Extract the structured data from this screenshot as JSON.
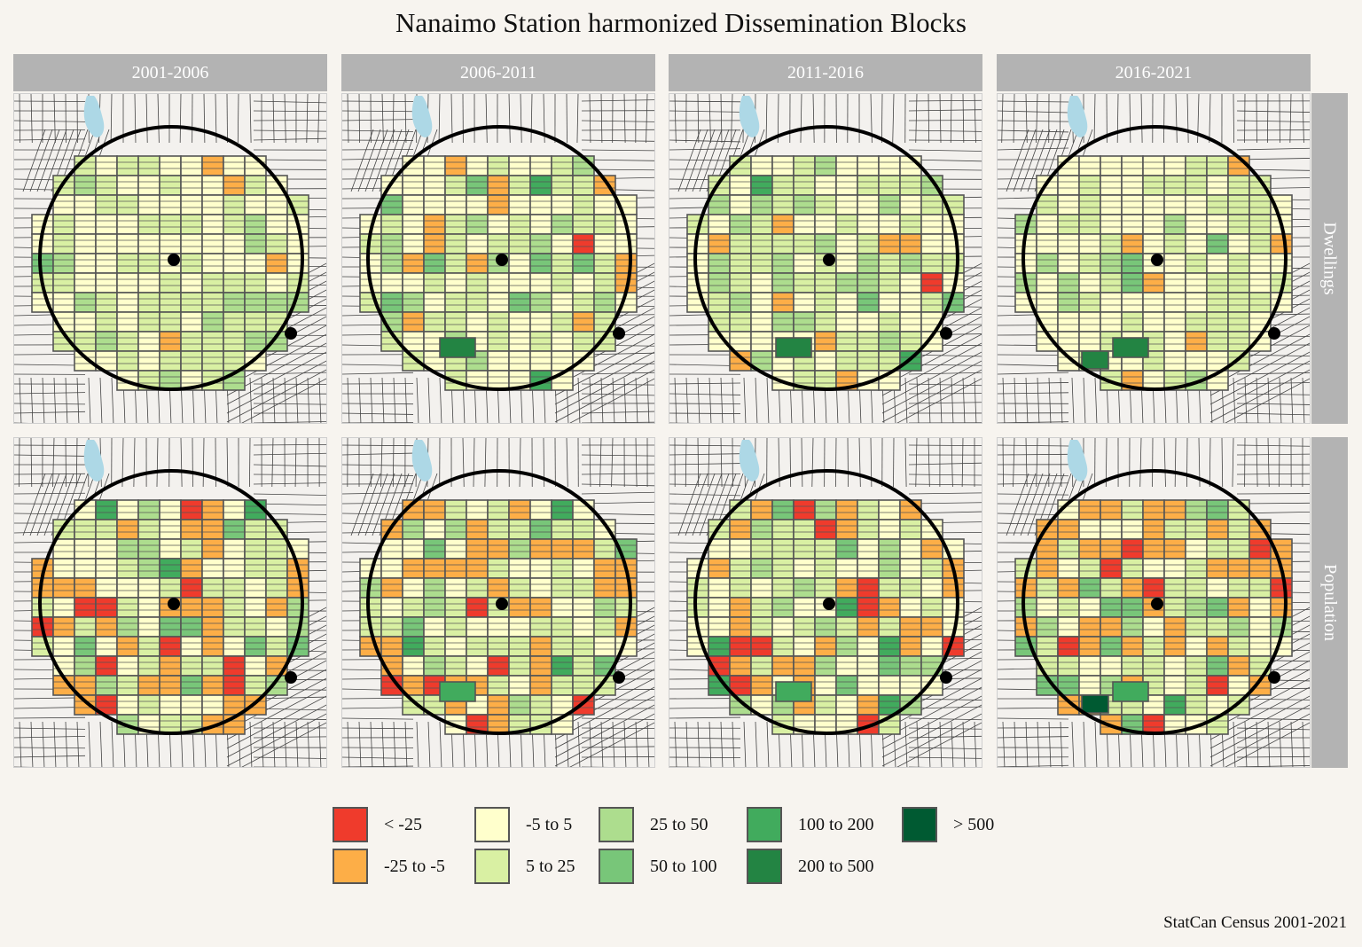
{
  "title": "Nanaimo Station harmonized Dissemination Blocks",
  "columns": [
    "2001-2006",
    "2006-2011",
    "2011-2016",
    "2016-2021"
  ],
  "rows": [
    "Dwellings",
    "Population"
  ],
  "legend": {
    "items": [
      {
        "label": "< -25",
        "color": "#ef3b2c"
      },
      {
        "label": "-25 to -5",
        "color": "#fdae47"
      },
      {
        "label": "-5 to 5",
        "color": "#ffffcc"
      },
      {
        "label": "5 to 25",
        "color": "#d9f0a3"
      },
      {
        "label": "25 to 50",
        "color": "#addd8e"
      },
      {
        "label": "50 to 100",
        "color": "#78c679"
      },
      {
        "label": "100 to 200",
        "color": "#41ab5d"
      },
      {
        "label": "200 to 500",
        "color": "#238443"
      },
      {
        "label": "> 500",
        "color": "#005a32"
      }
    ]
  },
  "colors": {
    "background": "#f7f4ef",
    "strip": "#b3b3b3",
    "water": "#add8e6",
    "streets": "#555555",
    "circle": "#000000"
  },
  "caption": "StatCan Census 2001-2021"
}
